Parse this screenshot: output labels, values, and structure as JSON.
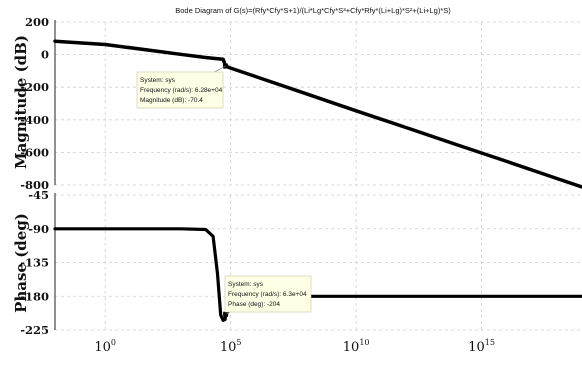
{
  "chart_data": [
    {
      "type": "line",
      "title": "Bode Diagram of G(s)=(Rfy*Cfy*S+1)/(Li*Lg*Cfy*S³+Cfy*Rfy*(Li+Lg)*S²+(Li+Lg)*S)",
      "panel": "magnitude",
      "ylabel": "Magnitude (dB)",
      "xlabel": "",
      "x_scale": "log",
      "xlim": [
        0.01,
        1e+19
      ],
      "ylim": [
        -800,
        200
      ],
      "yticks": [
        200,
        0,
        -200,
        -400,
        -600,
        -800
      ],
      "grid": true,
      "series": [
        {
          "x": [
            0.01,
            1,
            100,
            1000,
            10000,
            30000,
            50000,
            62800,
            100000,
            1000000.0,
            100000000.0,
            10000000000.0,
            1000000000000.0,
            100000000000000.0,
            1e+16,
            1e+18,
            1e+19
          ],
          "y": [
            82,
            62,
            22,
            2,
            -18,
            -25,
            -28,
            -70.4,
            -83,
            -135,
            -240,
            -345,
            -448,
            -552,
            -655,
            -760,
            -812
          ]
        }
      ],
      "annotations": [
        {
          "x": 62800,
          "y": -70.4,
          "lines": [
            "System: sys",
            "Frequency (rad/s): 6.28e+04",
            "Magnitude (dB): -70.4"
          ]
        }
      ]
    },
    {
      "type": "line",
      "panel": "phase",
      "ylabel": "Phase (deg)",
      "xlabel": "",
      "x_scale": "log",
      "xlim": [
        0.01,
        1e+19
      ],
      "ylim": [
        -225,
        -45
      ],
      "yticks": [
        -45,
        -90,
        -135,
        -180,
        -225
      ],
      "xticks": [
        {
          "base": "10",
          "exp": "0"
        },
        {
          "base": "10",
          "exp": "5"
        },
        {
          "base": "10",
          "exp": "10"
        },
        {
          "base": "10",
          "exp": "15"
        }
      ],
      "grid": true,
      "series": [
        {
          "x": [
            0.01,
            10,
            1000,
            10000,
            20000,
            30000,
            40000,
            50000,
            60000,
            63000,
            80000,
            100000,
            110000,
            150000,
            1000000.0,
            10000000000.0,
            1e+19
          ],
          "y": [
            -90,
            -90,
            -90,
            -91,
            -100,
            -150,
            -205,
            -212,
            -211,
            -204,
            -200,
            -192,
            -180,
            -180,
            -180,
            -180,
            -180
          ]
        }
      ],
      "annotations": [
        {
          "x": 63000,
          "y": -204,
          "lines": [
            "System: sys",
            "Frequency (rad/s): 6.3e+04",
            "Phase (deg): -204"
          ]
        }
      ]
    }
  ]
}
